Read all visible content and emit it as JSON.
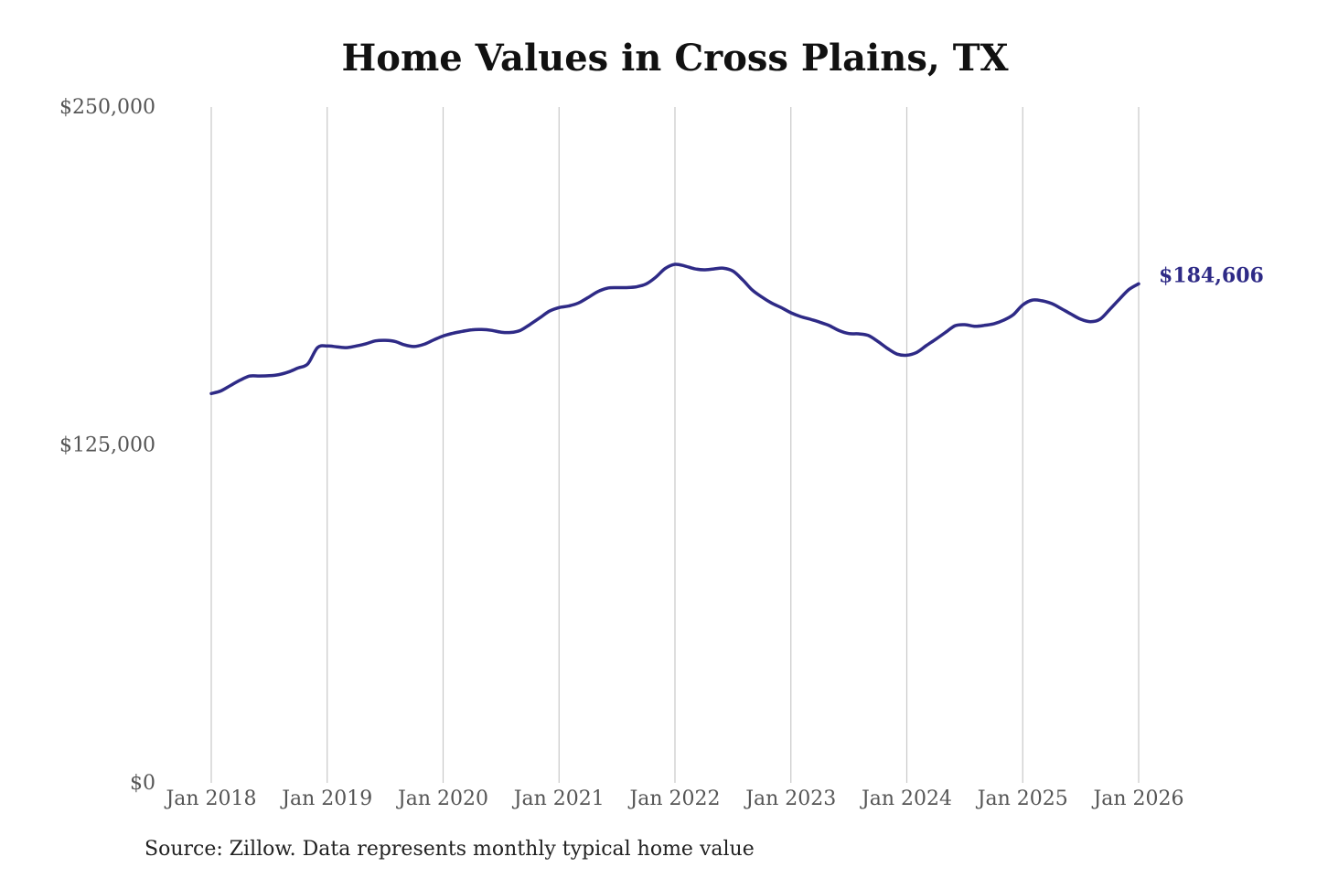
{
  "chart_data": {
    "type": "line",
    "title": "Home Values in Cross Plains, TX",
    "xlabel": "",
    "ylabel": "",
    "ylim": [
      0,
      250000
    ],
    "y_ticks": [
      {
        "value": 0,
        "label": "$0"
      },
      {
        "value": 125000,
        "label": "$125,000"
      },
      {
        "value": 250000,
        "label": "$250,000"
      }
    ],
    "x_ticks": [
      {
        "value": 2018,
        "label": "Jan 2018"
      },
      {
        "value": 2019,
        "label": "Jan 2019"
      },
      {
        "value": 2020,
        "label": "Jan 2020"
      },
      {
        "value": 2021,
        "label": "Jan 2021"
      },
      {
        "value": 2022,
        "label": "Jan 2022"
      },
      {
        "value": 2023,
        "label": "Jan 2023"
      },
      {
        "value": 2024,
        "label": "Jan 2024"
      },
      {
        "value": 2025,
        "label": "Jan 2025"
      },
      {
        "value": 2026,
        "label": "Jan 2026"
      }
    ],
    "xlim": [
      2018,
      2026
    ],
    "grid": "vertical",
    "line_color": "#2e2a86",
    "series": [
      {
        "x": [
          "2018-01",
          "2018-02",
          "2018-03",
          "2018-04",
          "2018-05",
          "2018-06",
          "2018-07",
          "2018-08",
          "2018-09",
          "2018-10",
          "2018-11",
          "2018-12",
          "2019-01",
          "2019-02",
          "2019-03",
          "2019-04",
          "2019-05",
          "2019-06",
          "2019-07",
          "2019-08",
          "2019-09",
          "2019-10",
          "2019-11",
          "2019-12",
          "2020-01",
          "2020-02",
          "2020-03",
          "2020-04",
          "2020-05",
          "2020-06",
          "2020-07",
          "2020-08",
          "2020-09",
          "2020-10",
          "2020-11",
          "2020-12",
          "2021-01",
          "2021-02",
          "2021-03",
          "2021-04",
          "2021-05",
          "2021-06",
          "2021-07",
          "2021-08",
          "2021-09",
          "2021-10",
          "2021-11",
          "2021-12",
          "2022-01",
          "2022-02",
          "2022-03",
          "2022-04",
          "2022-05",
          "2022-06",
          "2022-07",
          "2022-08",
          "2022-09",
          "2022-10",
          "2022-11",
          "2022-12",
          "2023-01",
          "2023-02",
          "2023-03",
          "2023-04",
          "2023-05",
          "2023-06",
          "2023-07",
          "2023-08",
          "2023-09",
          "2023-10",
          "2023-11",
          "2023-12",
          "2024-01",
          "2024-02",
          "2024-03",
          "2024-04",
          "2024-05",
          "2024-06",
          "2024-07",
          "2024-08",
          "2024-09",
          "2024-10",
          "2024-11",
          "2024-12",
          "2025-01",
          "2025-02",
          "2025-03",
          "2025-04",
          "2025-05",
          "2025-06",
          "2025-07",
          "2025-08",
          "2025-09",
          "2025-10",
          "2025-11",
          "2025-12",
          "2026-01"
        ],
        "values": [
          144000,
          145000,
          147000,
          149000,
          150500,
          150500,
          150600,
          151000,
          152000,
          153500,
          155000,
          161000,
          161600,
          161300,
          161000,
          161600,
          162400,
          163500,
          163700,
          163300,
          162000,
          161400,
          162200,
          163800,
          165300,
          166300,
          167000,
          167600,
          167700,
          167400,
          166700,
          166600,
          167400,
          169600,
          172000,
          174500,
          175800,
          176400,
          177500,
          179500,
          181700,
          183000,
          183200,
          183200,
          183500,
          184500,
          187000,
          190300,
          191800,
          191200,
          190200,
          189800,
          190100,
          190400,
          189300,
          186100,
          182300,
          179700,
          177500,
          175800,
          173900,
          172500,
          171500,
          170400,
          169100,
          167300,
          166200,
          166100,
          165500,
          163300,
          160700,
          158600,
          158200,
          159200,
          161700,
          164100,
          166600,
          169100,
          169500,
          168900,
          169200,
          169800,
          171100,
          173100,
          176800,
          178600,
          178300,
          177300,
          175400,
          173400,
          171500,
          170600,
          171500,
          175100,
          178900,
          182500,
          184606
        ]
      }
    ],
    "end_label": "$184,606"
  },
  "source_note": "Source: Zillow. Data represents monthly typical home value"
}
